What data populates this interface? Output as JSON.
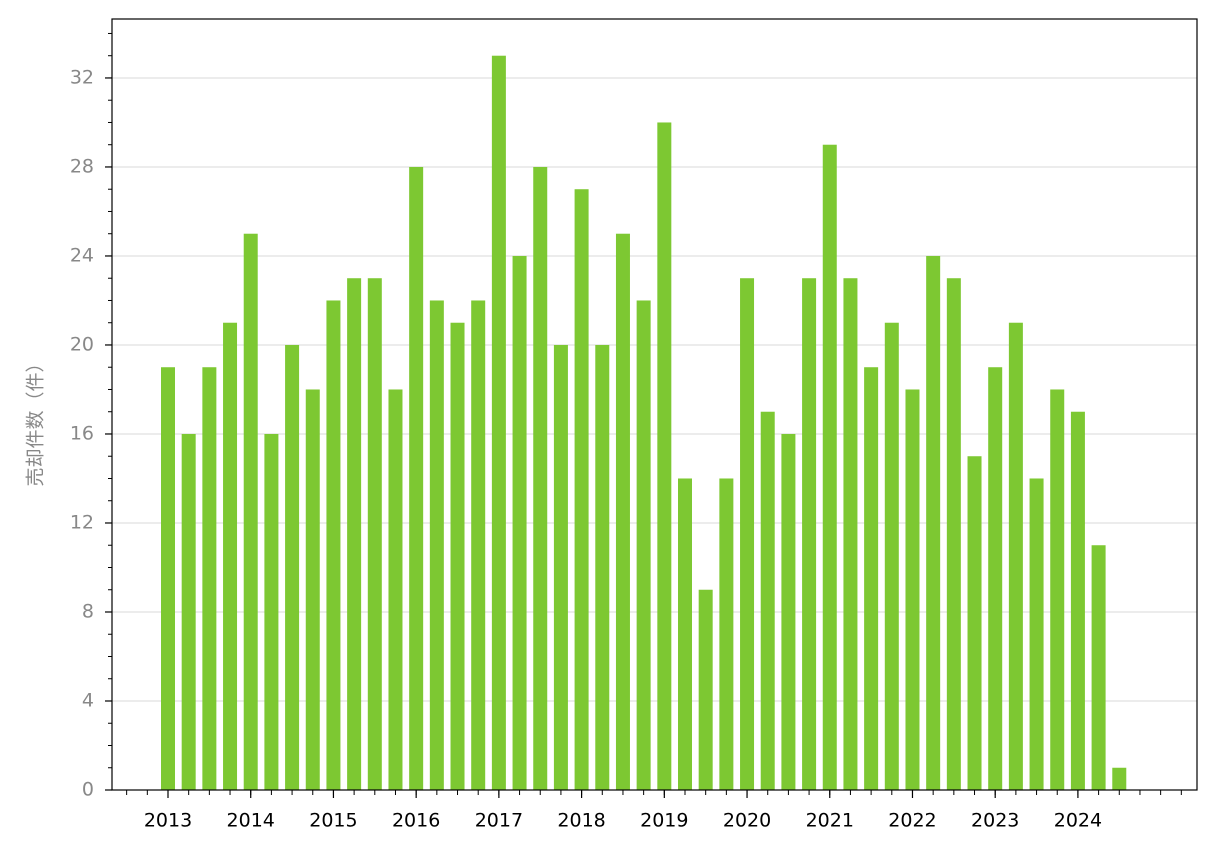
{
  "chart_data": {
    "type": "bar",
    "y_label": "売却件数（件）",
    "categories": [
      "2013",
      null,
      null,
      null,
      "2014",
      null,
      null,
      null,
      "2015",
      null,
      null,
      null,
      "2016",
      null,
      null,
      null,
      "2017",
      null,
      null,
      null,
      "2018",
      null,
      null,
      null,
      "2019",
      null,
      null,
      null,
      "2020",
      null,
      null,
      null,
      "2021",
      null,
      null,
      null,
      "2022",
      null,
      null,
      null,
      "2023",
      null,
      null,
      null,
      "2024",
      null,
      null
    ],
    "values": [
      19,
      16,
      19,
      21,
      25,
      16,
      20,
      18,
      22,
      23,
      23,
      18,
      28,
      22,
      21,
      22,
      33,
      24,
      28,
      20,
      27,
      20,
      25,
      22,
      30,
      14,
      9,
      14,
      23,
      17,
      16,
      23,
      29,
      23,
      19,
      21,
      18,
      24,
      23,
      15,
      19,
      21,
      14,
      18,
      17,
      11,
      1
    ],
    "color": "#7dc832",
    "ylim": [
      0,
      34.65
    ],
    "yticks": [
      0,
      4,
      8,
      12,
      16,
      20,
      24,
      28,
      32
    ],
    "grid": true
  }
}
